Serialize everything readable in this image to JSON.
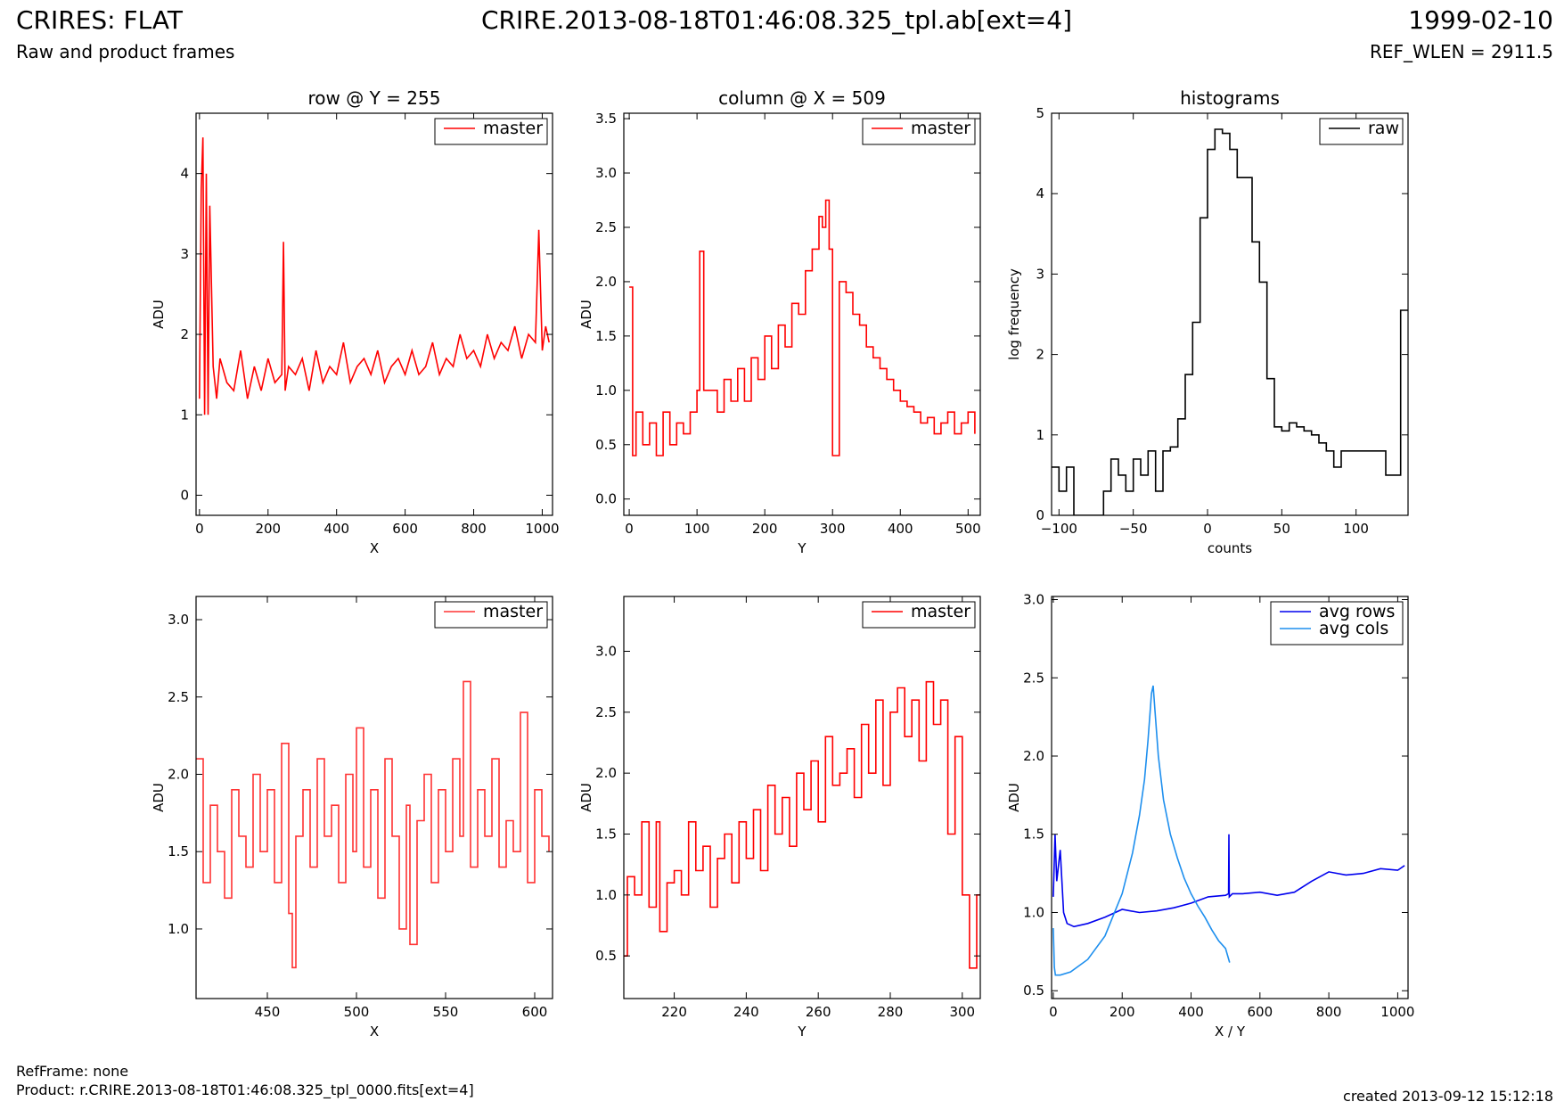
{
  "header": {
    "title": "CRIRES: FLAT",
    "subtitle": "Raw and product frames",
    "file": "CRIRE.2013-08-18T01:46:08.325_tpl.ab[ext=4]",
    "date": "1999-02-10",
    "ref_wlen": "REF_WLEN = 2911.5"
  },
  "footer": {
    "refframe": "RefFrame: none",
    "product": "Product: r.CRIRE.2013-08-18T01:46:08.325_tpl_0000.fits[ext=4]",
    "created": "created 2013-09-12 15:12:18"
  },
  "colors": {
    "master": "#ff0000",
    "master_zoom": "#ff3333",
    "raw": "#000000",
    "avg_rows": "#0000ee",
    "avg_cols": "#1e8fee"
  },
  "chart_data": [
    {
      "id": "row",
      "type": "line",
      "title": "row @ Y = 255",
      "xlabel": "X",
      "ylabel": "ADU",
      "xlim": [
        -10,
        1030
      ],
      "ylim": [
        -0.25,
        4.75
      ],
      "xticks": [
        "0",
        "200",
        "400",
        "600",
        "800",
        "1000"
      ],
      "xtick_values": [
        0,
        200,
        400,
        600,
        800,
        1000
      ],
      "yticks": [
        "0",
        "1",
        "2",
        "3",
        "4"
      ],
      "ytick_values": [
        0,
        1,
        2,
        3,
        4
      ],
      "legend": "top-right",
      "series": [
        {
          "name": "master",
          "color": "#ff0000",
          "step": false,
          "x": [
            0,
            5,
            10,
            15,
            20,
            25,
            30,
            40,
            50,
            60,
            80,
            100,
            120,
            140,
            160,
            180,
            200,
            220,
            240,
            245,
            250,
            260,
            280,
            300,
            320,
            340,
            360,
            380,
            400,
            420,
            440,
            460,
            480,
            500,
            520,
            540,
            560,
            580,
            600,
            620,
            640,
            660,
            680,
            700,
            720,
            740,
            760,
            780,
            800,
            820,
            840,
            860,
            880,
            900,
            920,
            940,
            960,
            980,
            990,
            1000,
            1010,
            1020
          ],
          "y": [
            1.2,
            3.8,
            4.45,
            1.0,
            4.0,
            1.0,
            3.6,
            1.6,
            1.2,
            1.7,
            1.4,
            1.3,
            1.8,
            1.2,
            1.6,
            1.3,
            1.7,
            1.4,
            1.5,
            3.15,
            1.3,
            1.6,
            1.5,
            1.7,
            1.3,
            1.8,
            1.4,
            1.6,
            1.5,
            1.9,
            1.4,
            1.6,
            1.7,
            1.5,
            1.8,
            1.4,
            1.6,
            1.7,
            1.5,
            1.8,
            1.5,
            1.6,
            1.9,
            1.5,
            1.7,
            1.6,
            2.0,
            1.7,
            1.8,
            1.6,
            2.0,
            1.7,
            1.9,
            1.8,
            2.1,
            1.7,
            2.0,
            1.9,
            3.3,
            1.8,
            2.1,
            1.9
          ]
        }
      ]
    },
    {
      "id": "column",
      "type": "line",
      "title": "column @ X = 509",
      "xlabel": "Y",
      "ylabel": "ADU",
      "xlim": [
        -8,
        518
      ],
      "ylim": [
        -0.15,
        3.55
      ],
      "xticks": [
        "0",
        "100",
        "200",
        "300",
        "400",
        "500"
      ],
      "xtick_values": [
        0,
        100,
        200,
        300,
        400,
        500
      ],
      "yticks": [
        "0.0",
        "0.5",
        "1.0",
        "1.5",
        "2.0",
        "2.5",
        "3.0",
        "3.5"
      ],
      "ytick_values": [
        0,
        0.5,
        1,
        1.5,
        2,
        2.5,
        3,
        3.5
      ],
      "legend": "top-right",
      "series": [
        {
          "name": "master",
          "color": "#ff0000",
          "step": true,
          "x": [
            0,
            5,
            10,
            20,
            30,
            40,
            50,
            60,
            70,
            80,
            90,
            100,
            104,
            110,
            120,
            130,
            140,
            150,
            160,
            170,
            180,
            190,
            200,
            210,
            220,
            230,
            240,
            250,
            260,
            270,
            280,
            285,
            290,
            295,
            300,
            310,
            320,
            330,
            340,
            350,
            360,
            370,
            380,
            390,
            400,
            410,
            420,
            430,
            440,
            450,
            460,
            470,
            480,
            490,
            500,
            510
          ],
          "y": [
            1.95,
            0.4,
            0.8,
            0.5,
            0.7,
            0.4,
            0.8,
            0.5,
            0.7,
            0.6,
            0.8,
            1.0,
            2.28,
            1.0,
            1.0,
            0.8,
            1.1,
            0.9,
            1.2,
            0.9,
            1.3,
            1.1,
            1.5,
            1.2,
            1.6,
            1.4,
            1.8,
            1.7,
            2.1,
            2.3,
            2.6,
            2.5,
            2.75,
            2.3,
            0.4,
            2.0,
            1.9,
            1.7,
            1.6,
            1.4,
            1.3,
            1.2,
            1.1,
            1.0,
            0.9,
            0.85,
            0.8,
            0.7,
            0.75,
            0.6,
            0.7,
            0.8,
            0.6,
            0.7,
            0.8,
            0.6
          ]
        }
      ]
    },
    {
      "id": "histograms",
      "type": "line",
      "title": "histograms",
      "xlabel": "counts",
      "ylabel": "log frequency",
      "xlim": [
        -105,
        135
      ],
      "ylim": [
        0,
        5
      ],
      "xticks": [
        "−100",
        "−50",
        "0",
        "50",
        "100"
      ],
      "xtick_values": [
        -100,
        -50,
        0,
        50,
        100
      ],
      "yticks": [
        "0",
        "1",
        "2",
        "3",
        "4",
        "5"
      ],
      "ytick_values": [
        0,
        1,
        2,
        3,
        4,
        5
      ],
      "legend": "top-right",
      "series": [
        {
          "name": "raw",
          "color": "#000000",
          "step": true,
          "x": [
            -105,
            -100,
            -95,
            -90,
            -85,
            -80,
            -75,
            -70,
            -65,
            -60,
            -55,
            -50,
            -45,
            -40,
            -35,
            -30,
            -25,
            -20,
            -15,
            -10,
            -5,
            0,
            5,
            10,
            15,
            20,
            25,
            30,
            35,
            40,
            45,
            50,
            55,
            60,
            65,
            70,
            75,
            80,
            85,
            90,
            95,
            100,
            105,
            110,
            115,
            120,
            125,
            130,
            135
          ],
          "y": [
            0.6,
            0.3,
            0.6,
            0,
            0,
            0,
            0,
            0.3,
            0.7,
            0.5,
            0.3,
            0.7,
            0.5,
            0.8,
            0.3,
            0.8,
            0.85,
            1.2,
            1.75,
            2.4,
            3.7,
            4.55,
            4.8,
            4.75,
            4.55,
            4.2,
            4.2,
            3.4,
            2.9,
            1.7,
            1.1,
            1.05,
            1.15,
            1.1,
            1.05,
            1.0,
            0.9,
            0.8,
            0.6,
            0.8,
            0.8,
            0.8,
            0.8,
            0.8,
            0.8,
            0.5,
            0.5,
            2.55,
            2.55
          ]
        }
      ]
    },
    {
      "id": "row-zoom",
      "type": "line",
      "title": "",
      "xlabel": "X",
      "ylabel": "ADU",
      "xlim": [
        410,
        610
      ],
      "ylim": [
        0.55,
        3.15
      ],
      "xticks": [
        "450",
        "500",
        "550",
        "600"
      ],
      "xtick_values": [
        450,
        500,
        550,
        600
      ],
      "yticks": [
        "1.0",
        "1.5",
        "2.0",
        "2.5",
        "3.0"
      ],
      "ytick_values": [
        1,
        1.5,
        2,
        2.5,
        3
      ],
      "legend": "top-right",
      "series": [
        {
          "name": "master",
          "color": "#ff3333",
          "step": true,
          "x": [
            410,
            414,
            418,
            422,
            426,
            430,
            434,
            438,
            442,
            446,
            450,
            454,
            458,
            462,
            464,
            466,
            470,
            474,
            478,
            482,
            486,
            490,
            494,
            498,
            500,
            504,
            508,
            512,
            516,
            520,
            524,
            528,
            530,
            534,
            538,
            542,
            546,
            550,
            554,
            558,
            560,
            564,
            568,
            572,
            576,
            580,
            584,
            588,
            592,
            596,
            600,
            604,
            608
          ],
          "y": [
            2.1,
            1.3,
            1.8,
            1.5,
            1.2,
            1.9,
            1.6,
            1.4,
            2.0,
            1.5,
            1.9,
            1.3,
            2.2,
            1.1,
            0.75,
            1.6,
            1.9,
            1.4,
            2.1,
            1.6,
            1.8,
            1.3,
            2.0,
            1.5,
            2.3,
            1.4,
            1.9,
            1.2,
            2.1,
            1.6,
            1.0,
            1.8,
            0.9,
            1.7,
            2.0,
            1.3,
            1.9,
            1.5,
            2.1,
            1.6,
            2.6,
            1.4,
            1.9,
            1.6,
            2.1,
            1.4,
            1.7,
            1.5,
            2.4,
            1.3,
            1.9,
            1.6,
            1.5
          ]
        }
      ]
    },
    {
      "id": "column-zoom",
      "type": "line",
      "title": "",
      "xlabel": "Y",
      "ylabel": "ADU",
      "xlim": [
        206,
        305
      ],
      "ylim": [
        0.15,
        3.45
      ],
      "xticks": [
        "220",
        "240",
        "260",
        "280",
        "300"
      ],
      "xtick_values": [
        220,
        240,
        260,
        280,
        300
      ],
      "yticks": [
        "0.5",
        "1.0",
        "1.5",
        "2.0",
        "2.5",
        "3.0"
      ],
      "ytick_values": [
        0.5,
        1,
        1.5,
        2,
        2.5,
        3
      ],
      "legend": "top-right",
      "series": [
        {
          "name": "master",
          "color": "#ff0000",
          "step": true,
          "x": [
            206,
            207,
            209,
            211,
            213,
            215,
            216,
            218,
            220,
            222,
            224,
            226,
            228,
            230,
            232,
            234,
            236,
            238,
            240,
            242,
            244,
            246,
            248,
            250,
            252,
            254,
            256,
            258,
            260,
            262,
            264,
            266,
            268,
            270,
            272,
            274,
            276,
            278,
            280,
            282,
            284,
            286,
            288,
            290,
            292,
            294,
            296,
            298,
            300,
            302,
            304,
            305
          ],
          "y": [
            0.5,
            1.15,
            1.0,
            1.6,
            0.9,
            1.6,
            0.7,
            1.1,
            1.2,
            1.0,
            1.6,
            1.2,
            1.4,
            0.9,
            1.3,
            1.5,
            1.1,
            1.6,
            1.3,
            1.7,
            1.2,
            1.9,
            1.5,
            1.8,
            1.4,
            2.0,
            1.7,
            2.1,
            1.6,
            2.3,
            1.9,
            2.0,
            2.2,
            1.8,
            2.4,
            2.0,
            2.6,
            1.9,
            2.5,
            2.7,
            2.3,
            2.6,
            2.1,
            2.75,
            2.4,
            2.6,
            1.5,
            2.3,
            1.0,
            0.4,
            1.0,
            1.0
          ]
        }
      ]
    },
    {
      "id": "averages",
      "type": "line",
      "title": "",
      "xlabel": "X / Y",
      "ylabel": "ADU",
      "xlim": [
        -5,
        1030
      ],
      "ylim": [
        0.45,
        3.02
      ],
      "xticks": [
        "0",
        "200",
        "400",
        "600",
        "800",
        "1000"
      ],
      "xtick_values": [
        0,
        200,
        400,
        600,
        800,
        1000
      ],
      "yticks": [
        "0.5",
        "1.0",
        "1.5",
        "2.0",
        "2.5",
        "3.0"
      ],
      "ytick_values": [
        0.5,
        1,
        1.5,
        2,
        2.5,
        3
      ],
      "legend": "top-right",
      "series": [
        {
          "name": "avg rows",
          "color": "#0000ee",
          "step": false,
          "x": [
            0,
            5,
            10,
            20,
            30,
            40,
            60,
            100,
            150,
            200,
            250,
            300,
            350,
            400,
            450,
            500,
            509,
            510,
            511,
            520,
            550,
            600,
            650,
            700,
            750,
            800,
            850,
            900,
            950,
            1000,
            1020
          ],
          "y": [
            1.1,
            1.5,
            1.2,
            1.4,
            1.0,
            0.93,
            0.91,
            0.93,
            0.97,
            1.02,
            1.0,
            1.01,
            1.03,
            1.06,
            1.1,
            1.11,
            1.12,
            1.5,
            1.1,
            1.12,
            1.12,
            1.13,
            1.11,
            1.13,
            1.2,
            1.26,
            1.24,
            1.25,
            1.28,
            1.27,
            1.3
          ]
        },
        {
          "name": "avg cols",
          "color": "#1e8fee",
          "step": false,
          "x": [
            0,
            3,
            6,
            20,
            50,
            100,
            150,
            200,
            230,
            250,
            265,
            275,
            285,
            290,
            295,
            305,
            320,
            340,
            360,
            380,
            400,
            420,
            440,
            460,
            480,
            500,
            512
          ],
          "y": [
            0.9,
            0.65,
            0.6,
            0.6,
            0.62,
            0.7,
            0.85,
            1.12,
            1.38,
            1.62,
            1.85,
            2.1,
            2.4,
            2.45,
            2.3,
            2.0,
            1.72,
            1.5,
            1.35,
            1.22,
            1.12,
            1.04,
            0.97,
            0.89,
            0.82,
            0.77,
            0.68
          ]
        }
      ]
    }
  ]
}
